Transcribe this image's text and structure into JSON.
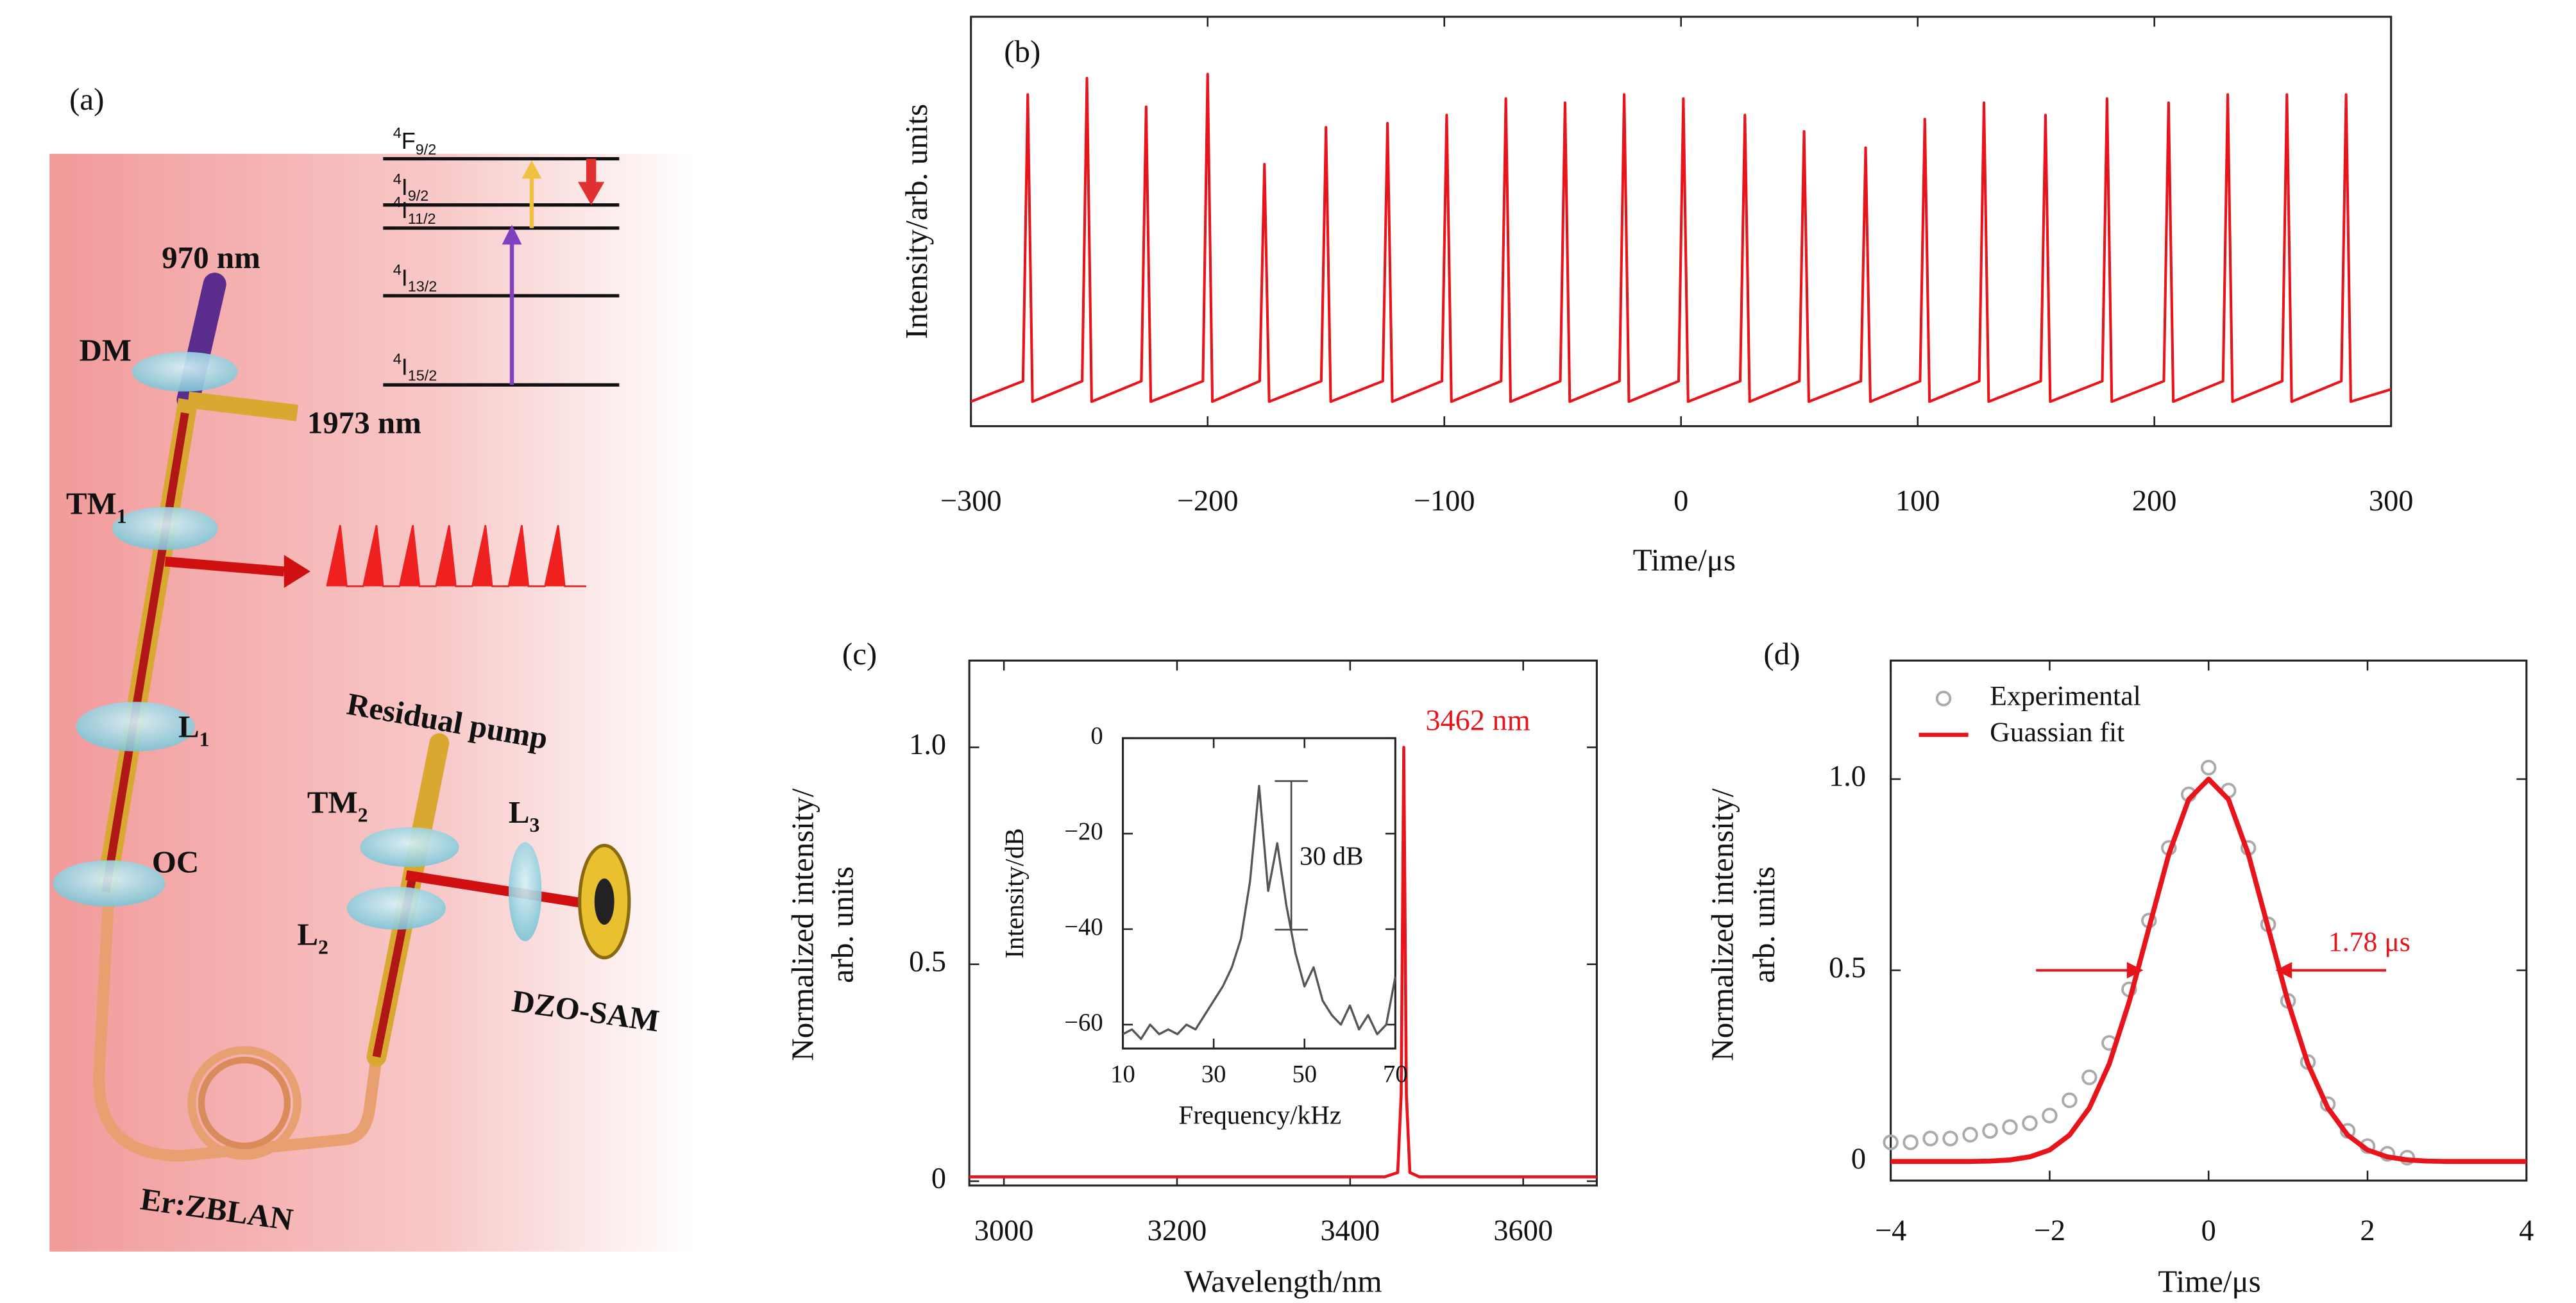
{
  "diagram": {
    "panel_label": "(a)",
    "labels": [
      {
        "text": "970 nm"
      },
      {
        "text": "DM"
      },
      {
        "text": "1973 nm"
      },
      {
        "main": "TM",
        "sub": "1"
      },
      {
        "main": "L",
        "sub": "1"
      },
      {
        "text": "OC"
      },
      {
        "text": "Residual pump"
      },
      {
        "main": "TM",
        "sub": "2"
      },
      {
        "main": "L",
        "sub": "2"
      },
      {
        "main": "L",
        "sub": "3"
      },
      {
        "text": "DZO-SAM"
      },
      {
        "text": "Er:ZBLAN"
      }
    ],
    "levels": [
      {
        "sup": "4",
        "main": "F",
        "sub": "9/2"
      },
      {
        "sup": "4",
        "main": "I",
        "sub": "9/2"
      },
      {
        "sup": "4",
        "main": "I",
        "sub": "11/2"
      },
      {
        "sup": "4",
        "main": "I",
        "sub": "13/2"
      },
      {
        "sup": "4",
        "main": "I",
        "sub": "15/2"
      }
    ]
  },
  "chart_data": [
    {
      "type": "line",
      "panel_label": "(b)",
      "xlabel": "Time/μs",
      "ylabel": [
        "Intensity/arb. units"
      ],
      "xlim": [
        -300,
        300
      ],
      "ylim": [
        0,
        1
      ],
      "xticks": [
        {
          "value": -300,
          "label": "−300"
        },
        {
          "value": -200,
          "label": "−200"
        },
        {
          "value": -100,
          "label": "−100"
        },
        0,
        100,
        200,
        300
      ],
      "series": [
        {
          "color": "#e8141b",
          "x": [
            -300,
            -278,
            -276,
            -274,
            -253,
            -251,
            -249,
            -228,
            -226,
            -224,
            -202,
            -200,
            -198,
            -178,
            -176,
            -174,
            -152,
            -150,
            -148,
            -126,
            -124,
            -122,
            -101,
            -99,
            -97,
            -76,
            -74,
            -72,
            -51,
            -49,
            -47,
            -26,
            -24,
            -22,
            -1,
            1,
            3,
            25,
            27,
            29,
            50,
            52,
            54,
            76,
            78,
            80,
            101,
            103,
            105,
            126,
            128,
            130,
            152,
            154,
            156,
            178,
            180,
            182,
            204,
            206,
            208,
            229,
            231,
            233,
            254,
            256,
            258,
            279,
            281,
            283,
            300
          ],
          "values": [
            0.06,
            0.11,
            0.81,
            0.06,
            0.11,
            0.85,
            0.06,
            0.11,
            0.78,
            0.06,
            0.11,
            0.86,
            0.06,
            0.11,
            0.64,
            0.06,
            0.11,
            0.73,
            0.06,
            0.11,
            0.74,
            0.06,
            0.11,
            0.76,
            0.06,
            0.11,
            0.8,
            0.06,
            0.11,
            0.79,
            0.06,
            0.11,
            0.81,
            0.06,
            0.11,
            0.8,
            0.06,
            0.11,
            0.76,
            0.06,
            0.11,
            0.72,
            0.06,
            0.11,
            0.68,
            0.06,
            0.11,
            0.75,
            0.06,
            0.11,
            0.79,
            0.06,
            0.11,
            0.76,
            0.06,
            0.11,
            0.8,
            0.06,
            0.11,
            0.79,
            0.06,
            0.11,
            0.81,
            0.06,
            0.11,
            0.81,
            0.06,
            0.11,
            0.81,
            0.06,
            0.09
          ]
        }
      ]
    },
    {
      "type": "line",
      "panel_label": "(c)",
      "xlabel": "Wavelength/nm",
      "ylabel": [
        "Normalized intensity/",
        "arb. units"
      ],
      "xlim": [
        2960,
        3685
      ],
      "ylim": [
        -0.01,
        1.2
      ],
      "xticks": [
        3000,
        3200,
        3400,
        3600
      ],
      "yticks": [
        0,
        0.5,
        {
          "value": 1,
          "label": "1.0"
        }
      ],
      "annotation": "3462 nm",
      "series": [
        {
          "color": "#e8141b",
          "x": [
            2960,
            3440,
            3455,
            3459,
            3462,
            3465,
            3469,
            3480,
            3685
          ],
          "values": [
            0.01,
            0.01,
            0.02,
            0.2,
            1.0,
            0.2,
            0.02,
            0.01,
            0.01
          ]
        }
      ],
      "inset": {
        "type": "line",
        "xlabel": "Frequency/kHz",
        "ylabel": [
          "Intensity/dB"
        ],
        "xlim": [
          10,
          70
        ],
        "ylim": [
          -65,
          0
        ],
        "xticks": [
          10,
          30,
          50,
          70
        ],
        "yticks": [
          0,
          {
            "value": -20,
            "label": "−20"
          },
          {
            "value": -40,
            "label": "−40"
          },
          {
            "value": -60,
            "label": "−60"
          }
        ],
        "annotation": "30 dB",
        "series": [
          {
            "color": "#555555",
            "x": [
              10,
              12,
              14,
              16,
              18,
              20,
              22,
              24,
              26,
              28,
              30,
              32,
              34,
              36,
              38,
              40,
              42,
              44,
              46,
              48,
              50,
              52,
              54,
              56,
              58,
              60,
              62,
              64,
              66,
              68,
              70
            ],
            "values": [
              -62,
              -61,
              -63,
              -60,
              -62,
              -61,
              -62,
              -60,
              -61,
              -58,
              -55,
              -52,
              -48,
              -42,
              -30,
              -10,
              -32,
              -22,
              -35,
              -45,
              -52,
              -48,
              -55,
              -58,
              -60,
              -56,
              -61,
              -58,
              -62,
              -60,
              -50
            ]
          }
        ]
      }
    },
    {
      "type": "line",
      "panel_label": "(d)",
      "xlabel": "Time/μs",
      "ylabel": [
        "Normalized intensity/",
        "arb. units"
      ],
      "xlim": [
        -4,
        4
      ],
      "ylim": [
        -0.05,
        1.31
      ],
      "xticks": [
        {
          "value": -4,
          "label": "−4"
        },
        {
          "value": -2,
          "label": "−2"
        },
        0,
        2,
        4
      ],
      "yticks": [
        0,
        0.5,
        {
          "value": 1,
          "label": "1.0"
        }
      ],
      "annotation": "1.78 μs",
      "series": [
        {
          "name": "Experimental",
          "type": "scatter",
          "color": "#aaaaaa",
          "x": [
            -4,
            -3.75,
            -3.5,
            -3.25,
            -3,
            -2.75,
            -2.5,
            -2.25,
            -2,
            -1.75,
            -1.5,
            -1.25,
            -1,
            -0.75,
            -0.5,
            -0.25,
            0,
            0.25,
            0.5,
            0.75,
            1,
            1.25,
            1.5,
            1.75,
            2,
            2.25,
            2.5
          ],
          "values": [
            0.05,
            0.05,
            0.06,
            0.06,
            0.07,
            0.08,
            0.09,
            0.1,
            0.12,
            0.16,
            0.22,
            0.31,
            0.45,
            0.63,
            0.82,
            0.96,
            1.03,
            0.97,
            0.82,
            0.62,
            0.42,
            0.26,
            0.15,
            0.08,
            0.04,
            0.02,
            0.01
          ]
        },
        {
          "name": "Guassian fit",
          "type": "line",
          "color": "#e8141b",
          "x": [
            -4,
            -3.75,
            -3.5,
            -3.25,
            -3,
            -2.75,
            -2.5,
            -2.25,
            -2,
            -1.75,
            -1.5,
            -1.25,
            -1,
            -0.75,
            -0.5,
            -0.25,
            0,
            0.25,
            0.5,
            0.75,
            1,
            1.25,
            1.5,
            1.75,
            2,
            2.25,
            2.5,
            2.75,
            3,
            3.25,
            3.5,
            3.75,
            4
          ],
          "values": [
            0,
            0,
            0,
            0,
            0,
            0.001,
            0.004,
            0.012,
            0.03,
            0.069,
            0.14,
            0.255,
            0.417,
            0.611,
            0.804,
            0.947,
            1,
            0.947,
            0.804,
            0.611,
            0.417,
            0.255,
            0.14,
            0.069,
            0.03,
            0.012,
            0.004,
            0.001,
            0,
            0,
            0,
            0,
            0
          ]
        }
      ]
    }
  ]
}
